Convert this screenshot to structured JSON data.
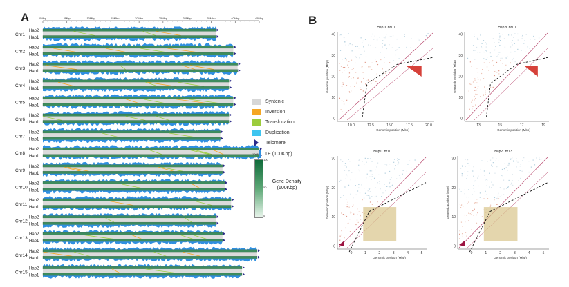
{
  "panel_a": {
    "letter": "A",
    "axis_ticks": [
      "0Mbp",
      "5Mbp",
      "10Mbp",
      "15Mbp",
      "20Mbp",
      "25Mbp",
      "30Mbp",
      "35Mbp",
      "40Mbp",
      "45Mbp"
    ],
    "chromosomes": [
      {
        "name": "Chr1",
        "hap_top": "Hap2",
        "hap_bottom": "Hap1",
        "length_frac": 0.8
      },
      {
        "name": "Chr2",
        "hap_top": "Hap2",
        "hap_bottom": "Hap1",
        "length_frac": 0.88
      },
      {
        "name": "Chr3",
        "hap_top": "Hap2",
        "hap_bottom": "Hap1",
        "length_frac": 0.9
      },
      {
        "name": "Chr4",
        "hap_top": "Hap2",
        "hap_bottom": "Hap1",
        "length_frac": 0.86
      },
      {
        "name": "Chr5",
        "hap_top": "Hap2",
        "hap_bottom": "Hap1",
        "length_frac": 0.88
      },
      {
        "name": "Chr6",
        "hap_top": "Hap2",
        "hap_bottom": "Hap1",
        "length_frac": 0.86
      },
      {
        "name": "Chr7",
        "hap_top": "Hap2",
        "hap_bottom": "Hap1",
        "length_frac": 0.82
      },
      {
        "name": "Chr8",
        "hap_top": "Hap2",
        "hap_bottom": "Hap1",
        "length_frac": 1.0
      },
      {
        "name": "Chr9",
        "hap_top": "Hap2",
        "hap_bottom": "Hap1",
        "length_frac": 0.83
      },
      {
        "name": "Chr10",
        "hap_top": "Hap2",
        "hap_bottom": "Hap1",
        "length_frac": 0.84
      },
      {
        "name": "Chr11",
        "hap_top": "Hap2",
        "hap_bottom": "Hap1",
        "length_frac": 0.87
      },
      {
        "name": "Chr12",
        "hap_top": "Hap2",
        "hap_bottom": "Hap1",
        "length_frac": 0.8
      },
      {
        "name": "Chr13",
        "hap_top": "Hap2",
        "hap_bottom": "Hap1",
        "length_frac": 0.83
      },
      {
        "name": "Chr14",
        "hap_top": "Hap2",
        "hap_bottom": "Hap1",
        "length_frac": 0.99
      },
      {
        "name": "Chr15",
        "hap_top": "Hap2",
        "hap_bottom": "Hap1",
        "length_frac": 0.92
      }
    ]
  },
  "legend": {
    "items": [
      {
        "label": "Syntenic",
        "color": "#d7d7d7"
      },
      {
        "label": "Inversion",
        "color": "#f5a623"
      },
      {
        "label": "Translocation",
        "color": "#9ccc3c"
      },
      {
        "label": "Duplication",
        "color": "#3ec5f0"
      }
    ],
    "telomere_label": "Telomere",
    "te_label": "TE (100Kbp)",
    "te_tick": "1005",
    "gene_density_label": "Gene Density (100Kbp)",
    "gene_ticks": [
      "100",
      "50",
      "0"
    ]
  },
  "panel_b": {
    "letter": "B",
    "plots": [
      {
        "title": "Hap1Chr10",
        "ylabel": "Genomic position (Mbp)",
        "xlabel": "Genomic position (Mbp)",
        "yticks": [
          "0",
          "10",
          "20",
          "30",
          "40"
        ],
        "xticks": [
          "10.0",
          "12.5",
          "15.0",
          "17.5",
          "20.0"
        ]
      },
      {
        "title": "Hap2Chr10",
        "ylabel": "Genomic position (Mbp)",
        "xlabel": "Genomic position (Mbp)",
        "yticks": [
          "0",
          "10",
          "20",
          "30",
          "40"
        ],
        "xticks": [
          "13",
          "15",
          "17",
          "19"
        ]
      },
      {
        "title": "Hap1Chr10",
        "ylabel": "Genomic position (Mbp)",
        "xlabel": "Genomic position (Mbp)",
        "yticks": [
          "0",
          "10",
          "20",
          "30"
        ],
        "xticks": [
          "0",
          "1",
          "2",
          "3",
          "4",
          "5"
        ]
      },
      {
        "title": "Hap2Chr13",
        "ylabel": "Genomic position (Mbp)",
        "xlabel": "Genomic position (Mbp)",
        "yticks": [
          "0",
          "10",
          "20",
          "30"
        ],
        "xticks": [
          "0",
          "1",
          "2",
          "3",
          "4",
          "5"
        ]
      }
    ]
  }
}
